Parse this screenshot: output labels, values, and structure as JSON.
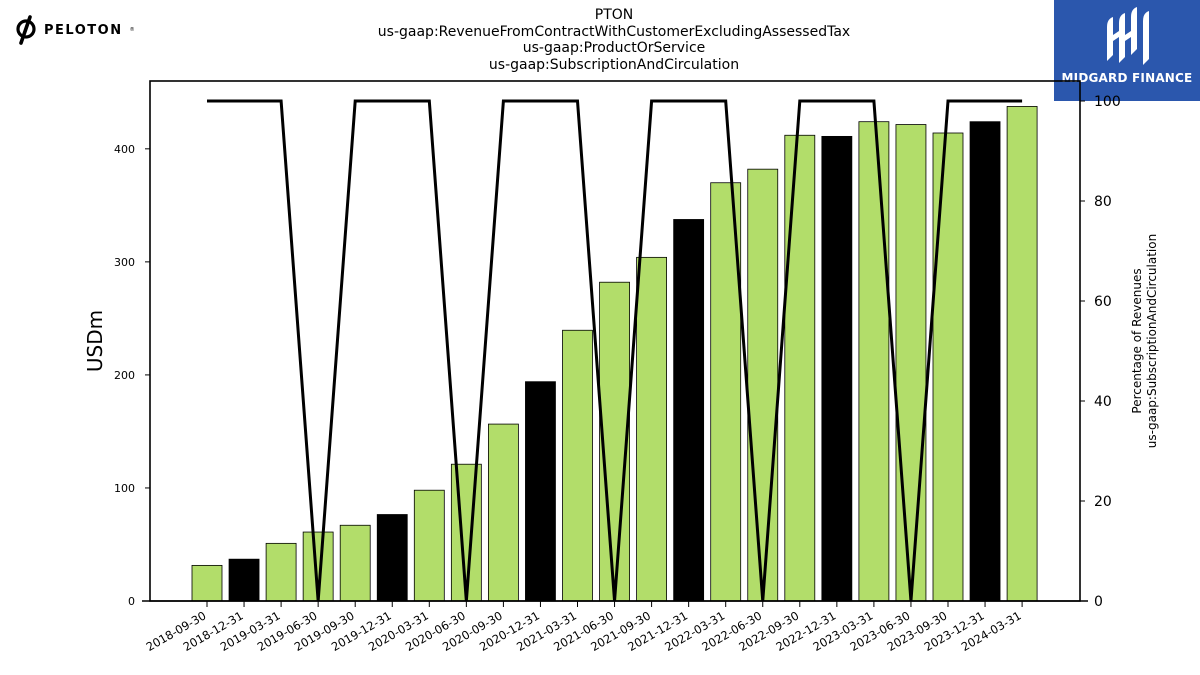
{
  "logos": {
    "left_text": "PELOTON",
    "left_mark": "®",
    "right_text": "MIDGARD FINANCE",
    "right_bg_color": "#2b57ad"
  },
  "chart_data": {
    "type": "bar",
    "title_lines": [
      "PTON",
      "us-gaap:RevenueFromContractWithCustomerExcludingAssessedTax",
      "us-gaap:ProductOrService",
      "us-gaap:SubscriptionAndCirculation"
    ],
    "categories": [
      "2018-09-30",
      "2018-12-31",
      "2019-03-31",
      "2019-06-30",
      "2019-09-30",
      "2019-12-31",
      "2020-03-31",
      "2020-06-30",
      "2020-09-30",
      "2020-12-31",
      "2021-03-31",
      "2021-06-30",
      "2021-09-30",
      "2021-12-31",
      "2022-03-31",
      "2022-06-30",
      "2022-09-30",
      "2022-12-31",
      "2023-03-31",
      "2023-06-30",
      "2023-09-30",
      "2023-12-31",
      "2024-03-31"
    ],
    "series": [
      {
        "type": "bar",
        "values": [
          31.5,
          37.0,
          51.0,
          61.0,
          67.0,
          76.5,
          98.0,
          121.0,
          156.5,
          194.0,
          239.5,
          282.0,
          304.0,
          337.5,
          370.0,
          382.0,
          412.0,
          411.0,
          424.0,
          421.5,
          414.0,
          424.0,
          437.5
        ],
        "bar_colors": [
          "#b2dd6a",
          "#000000",
          "#b2dd6a",
          "#b2dd6a",
          "#b2dd6a",
          "#000000",
          "#b2dd6a",
          "#b2dd6a",
          "#b2dd6a",
          "#000000",
          "#b2dd6a",
          "#b2dd6a",
          "#b2dd6a",
          "#000000",
          "#b2dd6a",
          "#b2dd6a",
          "#b2dd6a",
          "#000000",
          "#b2dd6a",
          "#b2dd6a",
          "#b2dd6a",
          "#000000",
          "#b2dd6a"
        ],
        "axis": "left"
      },
      {
        "type": "line",
        "values": [
          100,
          100,
          100,
          0,
          100,
          100,
          100,
          0,
          100,
          100,
          100,
          0,
          100,
          100,
          100,
          0,
          100,
          100,
          100,
          0,
          100,
          100,
          100
        ],
        "color": "#000000",
        "axis": "right"
      }
    ],
    "ylabel": "USDm",
    "y2label_lines": [
      "Percentage of Revenues",
      "us-gaap:SubscriptionAndCirculation"
    ],
    "ylim": [
      0,
      460
    ],
    "y2lim": [
      0,
      104
    ],
    "yticks": [
      0,
      100,
      200,
      300,
      400
    ],
    "y2ticks": [
      0,
      20,
      40,
      60,
      80,
      100
    ],
    "grid": false,
    "legend": "none"
  }
}
